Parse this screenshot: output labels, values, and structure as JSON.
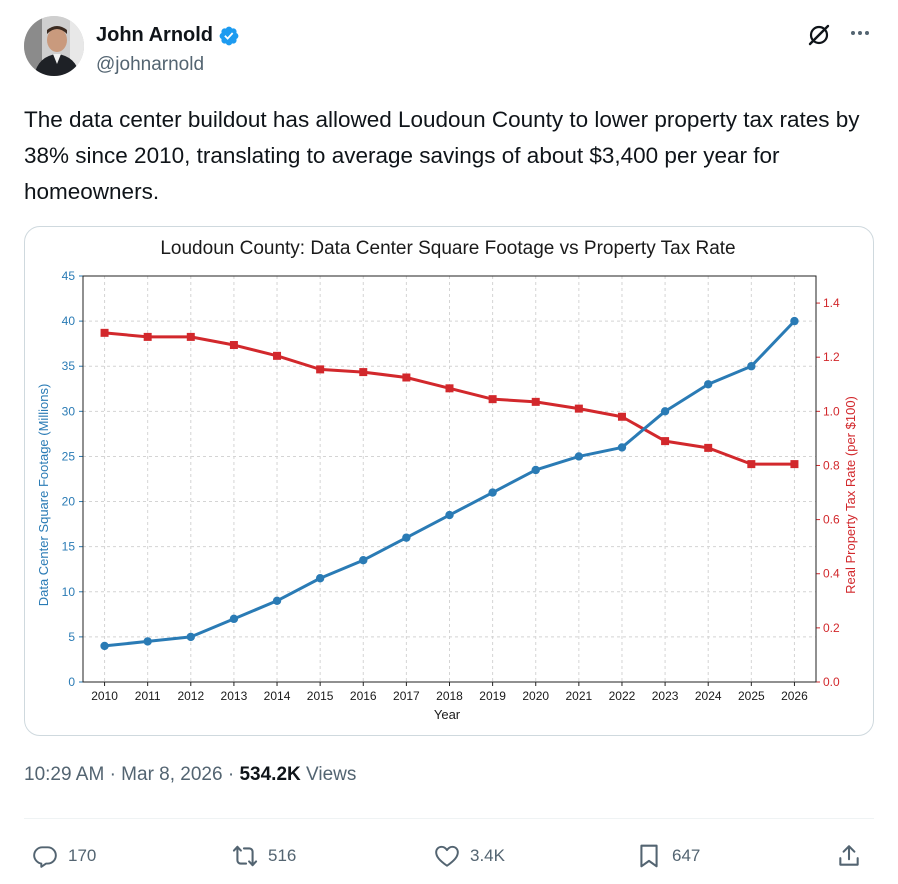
{
  "author": {
    "name": "John Arnold",
    "handle": "@johnarnold",
    "verified": true
  },
  "tweet": {
    "text": "The data center buildout has allowed Loudoun County to lower property tax rates by 38% since 2010, translating to average savings of about $3,400 per year for homeowners."
  },
  "meta": {
    "time": "10:29 AM",
    "separator": "·",
    "date": "Mar 8, 2026",
    "views_count": "534.2K",
    "views_label": "Views"
  },
  "actions": {
    "replies": "170",
    "reposts": "516",
    "likes": "3.4K",
    "bookmarks": "647"
  },
  "icons": {
    "reply": "reply-icon",
    "repost": "repost-icon",
    "like": "heart-icon",
    "bookmark": "bookmark-icon",
    "share": "share-icon",
    "grok": "grok-icon",
    "more": "more-icon",
    "verified": "verified-badge-icon"
  },
  "colors": {
    "blue_series": "#2a7bb5",
    "red_series": "#d2282c",
    "verified": "#1d9bf0"
  },
  "chart_data": {
    "type": "line",
    "title": "Loudoun County: Data Center Square Footage vs Property Tax Rate",
    "xlabel": "Year",
    "ylabel_left": "Data Center Square Footage (Millions)",
    "ylabel_right": "Real Property Tax Rate (per $100)",
    "categories": [
      "2010",
      "2011",
      "2012",
      "2013",
      "2014",
      "2015",
      "2016",
      "2017",
      "2018",
      "2019",
      "2020",
      "2021",
      "2022",
      "2023",
      "2024",
      "2025",
      "2026"
    ],
    "ylim_left": [
      0,
      45
    ],
    "yticks_left": [
      0,
      5,
      10,
      15,
      20,
      25,
      30,
      35,
      40,
      45
    ],
    "ylim_right": [
      0,
      1.5
    ],
    "yticks_right": [
      "0.0",
      "0.2",
      "0.4",
      "0.6",
      "0.8",
      "1.0",
      "1.2",
      "1.4"
    ],
    "grid": true,
    "series": [
      {
        "name": "Data Center Square Footage (Millions)",
        "axis": "left",
        "color": "#2a7bb5",
        "marker": "circle",
        "values": [
          4.0,
          4.5,
          5.0,
          7.0,
          9.0,
          11.5,
          13.5,
          16.0,
          18.5,
          21.0,
          23.5,
          25.0,
          26.0,
          30.0,
          33.0,
          35.0,
          40.0
        ]
      },
      {
        "name": "Real Property Tax Rate (per $100)",
        "axis": "right",
        "color": "#d2282c",
        "marker": "square",
        "values": [
          1.29,
          1.275,
          1.275,
          1.245,
          1.205,
          1.155,
          1.145,
          1.125,
          1.085,
          1.045,
          1.035,
          1.01,
          0.98,
          0.89,
          0.865,
          0.805,
          0.805
        ]
      }
    ]
  }
}
